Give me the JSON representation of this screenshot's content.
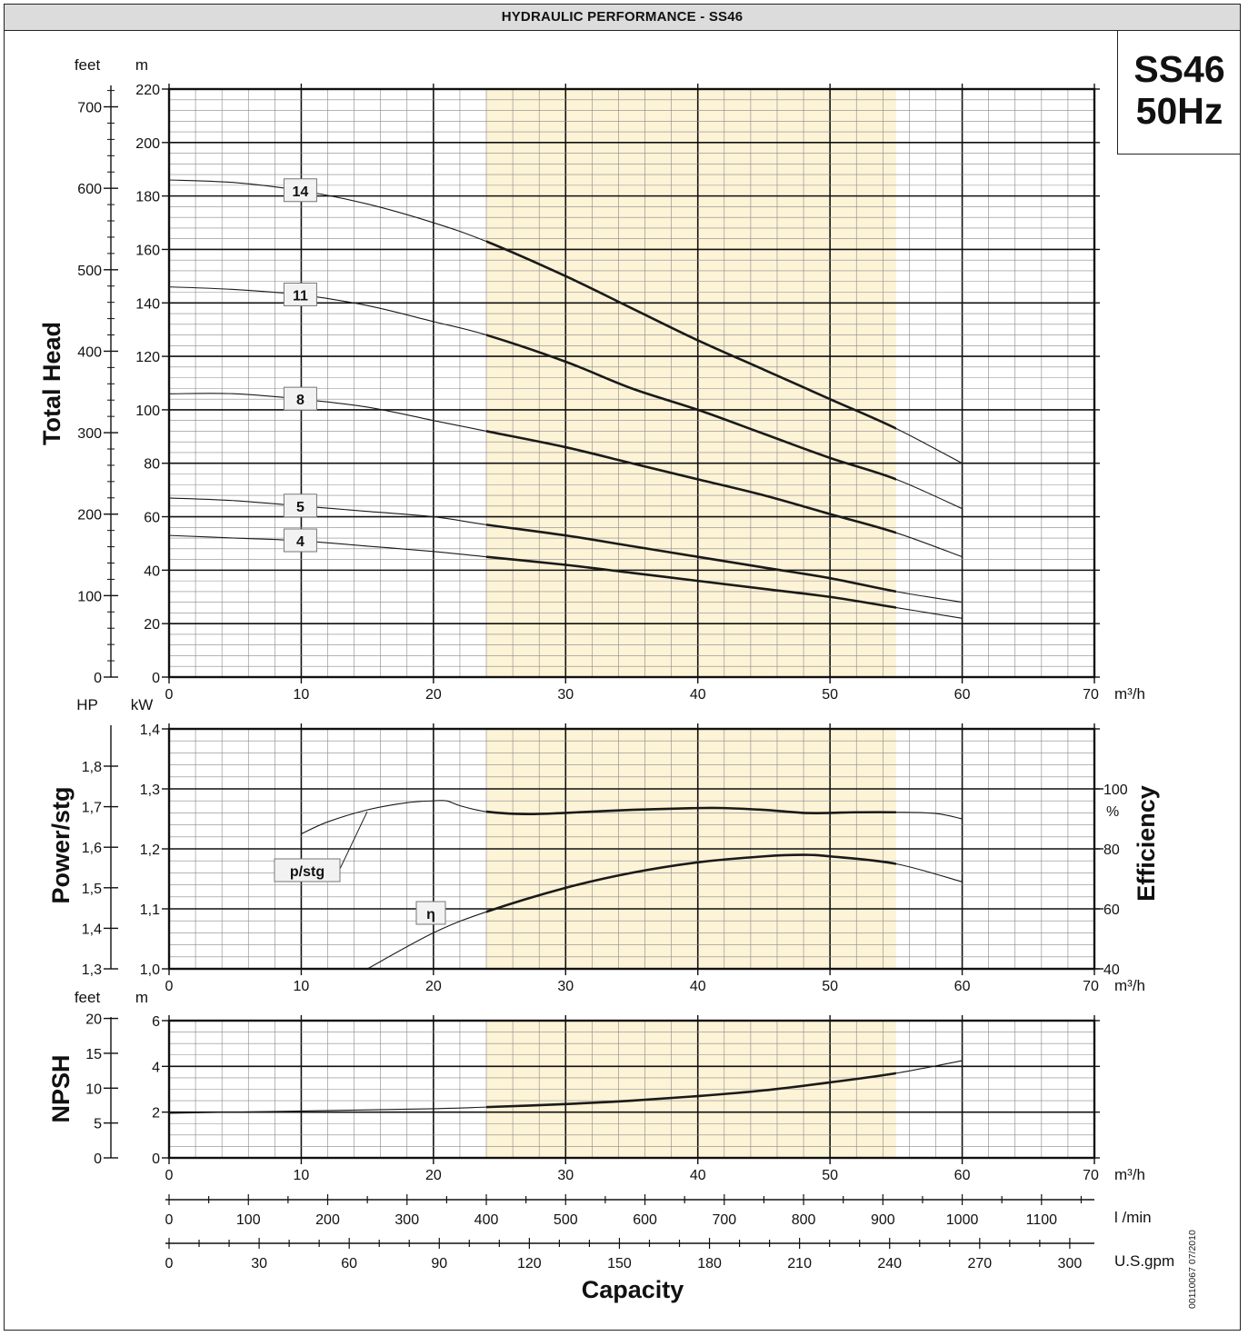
{
  "header": {
    "title": "HYDRAULIC PERFORMANCE - SS46"
  },
  "model": {
    "name": "SS46",
    "frequency": "50Hz"
  },
  "doc_id": "00110067  07/2010",
  "colors": {
    "shade": "#fdf3d6",
    "grid": "#888888",
    "grid_major": "#111111",
    "curve": "#1a1a1a"
  },
  "chart_data": [
    {
      "type": "line",
      "name": "head",
      "ylabel": "Total Head",
      "unit_left": "feet",
      "unit_right": "m",
      "xlim": [
        0,
        70
      ],
      "ylim": [
        0,
        220
      ],
      "x_unit": "m³/h",
      "x_ticks": [
        0,
        10,
        20,
        30,
        40,
        50,
        60,
        70
      ],
      "y_ticks": [
        0,
        20,
        40,
        60,
        80,
        100,
        120,
        140,
        160,
        180,
        200,
        220
      ],
      "secondary_ticks": [
        0,
        100,
        200,
        300,
        400,
        500,
        600,
        700
      ],
      "shaded_range": [
        24,
        55
      ],
      "grid": true,
      "series": [
        {
          "name": "14",
          "label": "14",
          "x": [
            0,
            5,
            10,
            15,
            20,
            24,
            30,
            35,
            40,
            45,
            50,
            55,
            60
          ],
          "y": [
            186,
            185,
            182,
            177,
            170,
            163,
            150,
            138,
            126,
            115,
            104,
            93,
            80
          ]
        },
        {
          "name": "11",
          "label": "11",
          "x": [
            0,
            5,
            10,
            15,
            20,
            24,
            30,
            35,
            40,
            45,
            50,
            55,
            60
          ],
          "y": [
            146,
            145,
            143,
            139,
            133,
            128,
            118,
            108,
            100,
            91,
            82,
            74,
            63
          ]
        },
        {
          "name": "8",
          "label": "8",
          "x": [
            0,
            5,
            10,
            15,
            20,
            24,
            30,
            35,
            40,
            45,
            50,
            55,
            60
          ],
          "y": [
            106,
            106,
            104,
            101,
            96,
            92,
            86,
            80,
            74,
            68,
            61,
            54,
            45
          ]
        },
        {
          "name": "5",
          "label": "5",
          "x": [
            0,
            5,
            10,
            15,
            20,
            24,
            30,
            35,
            40,
            45,
            50,
            55,
            60
          ],
          "y": [
            67,
            66,
            64,
            62,
            60,
            57,
            53,
            49,
            45,
            41,
            37,
            32,
            28
          ]
        },
        {
          "name": "4",
          "label": "4",
          "x": [
            0,
            5,
            10,
            15,
            20,
            24,
            30,
            35,
            40,
            45,
            50,
            55,
            60
          ],
          "y": [
            53,
            52,
            51,
            49,
            47,
            45,
            42,
            39,
            36,
            33,
            30,
            26,
            22
          ]
        }
      ]
    },
    {
      "type": "line",
      "name": "power_efficiency",
      "ylabel": "Power/stg",
      "y2label": "Efficiency",
      "unit_left": "HP",
      "unit_right": "kW",
      "y2_unit": "%",
      "xlim": [
        0,
        70
      ],
      "ylim": [
        1.0,
        1.4
      ],
      "x_unit": "m³/h",
      "x_ticks": [
        0,
        10,
        20,
        30,
        40,
        50,
        60,
        70
      ],
      "y_ticks": [
        "1,0",
        "1,1",
        "1,2",
        "1,3",
        "1,4"
      ],
      "secondary_ticks": [
        "1,3",
        "1,4",
        "1,5",
        "1,6",
        "1,7",
        "1,8"
      ],
      "y2_ticks": [
        "40",
        "60",
        "80",
        "100"
      ],
      "y2lim": [
        40,
        120
      ],
      "shaded_range": [
        24,
        55
      ],
      "grid": true,
      "series": [
        {
          "name": "p/stg",
          "label": "p/stg",
          "x": [
            10,
            12,
            15,
            18,
            20,
            21,
            22,
            24,
            27,
            30,
            35,
            40,
            42,
            45,
            48,
            50,
            52,
            55,
            58,
            60
          ],
          "y": [
            1.225,
            1.245,
            1.265,
            1.277,
            1.28,
            1.28,
            1.272,
            1.262,
            1.258,
            1.26,
            1.265,
            1.268,
            1.268,
            1.265,
            1.26,
            1.26,
            1.261,
            1.261,
            1.259,
            1.25
          ]
        },
        {
          "name": "η",
          "label": "η",
          "x": [
            15,
            20,
            24,
            30,
            35,
            40,
            45,
            48,
            50,
            55,
            60
          ],
          "y": [
            40,
            52,
            59,
            67,
            72,
            75.5,
            77.5,
            78,
            77.5,
            75,
            69
          ]
        }
      ]
    },
    {
      "type": "line",
      "name": "npsh",
      "ylabel": "NPSH",
      "unit_left": "feet",
      "unit_right": "m",
      "xlim": [
        0,
        70
      ],
      "ylim": [
        0,
        6
      ],
      "x_unit": "m³/h",
      "x_ticks": [
        0,
        10,
        20,
        30,
        40,
        50,
        60,
        70
      ],
      "y_ticks": [
        0,
        2,
        4,
        6
      ],
      "secondary_ticks": [
        0,
        5,
        10,
        15,
        20
      ],
      "shaded_range": [
        24,
        55
      ],
      "grid": true,
      "series": [
        {
          "name": "NPSH",
          "x": [
            0,
            10,
            20,
            24,
            30,
            35,
            40,
            45,
            50,
            55,
            60
          ],
          "y": [
            1.95,
            2.05,
            2.15,
            2.22,
            2.35,
            2.5,
            2.7,
            2.95,
            3.3,
            3.7,
            4.25
          ]
        }
      ]
    }
  ],
  "capacity_axes": {
    "title": "Capacity",
    "lmin": {
      "unit": "l /min",
      "ticks": [
        0,
        100,
        200,
        300,
        400,
        500,
        600,
        700,
        800,
        900,
        1000,
        1100
      ]
    },
    "usgpm": {
      "unit": "U.S.gpm",
      "ticks": [
        0,
        30,
        60,
        90,
        120,
        150,
        180,
        210,
        240,
        270,
        300
      ]
    }
  }
}
